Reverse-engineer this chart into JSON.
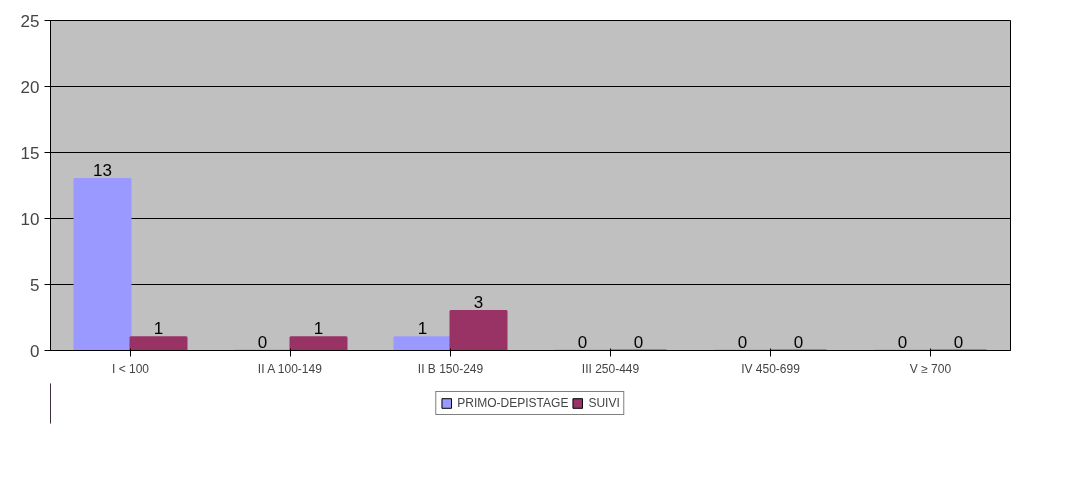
{
  "chart_data": {
    "type": "bar",
    "categories": [
      "I < 100",
      "II A 100-149",
      "II B 150-249",
      "III 250-449",
      "IV 450-699",
      "V ≥ 700"
    ],
    "series": [
      {
        "name": "PRIMO-DEPISTAGE",
        "color": "#9999ff",
        "values": [
          13,
          0,
          1,
          0,
          0,
          0
        ]
      },
      {
        "name": "SUIVI",
        "color": "#993366",
        "values": [
          1,
          1,
          3,
          0,
          0,
          0
        ]
      }
    ],
    "ylim": [
      0,
      25
    ],
    "yticks": [
      0,
      5,
      10,
      15,
      20,
      25
    ],
    "grid": "y",
    "legend": "bottom",
    "data_labels": true
  }
}
